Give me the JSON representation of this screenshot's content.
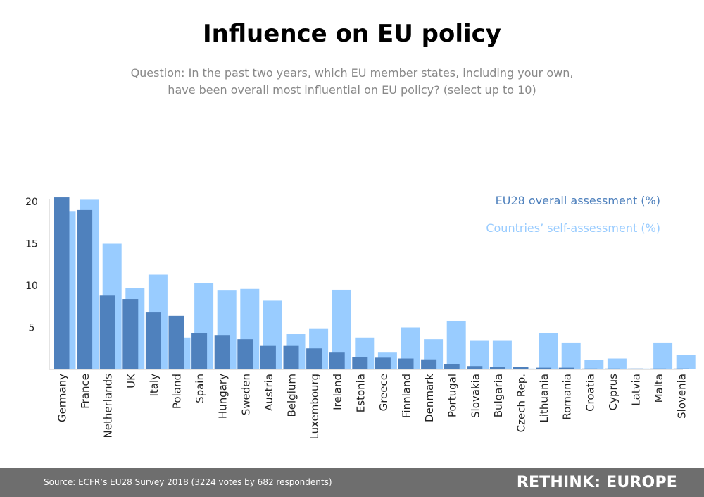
{
  "title": "Influence on EU policy",
  "subtitle": {
    "line1": "Question: In the past two years, which EU member states, including your own,",
    "line2": "have been overall most influential on EU policy? (select up to 10)"
  },
  "colors": {
    "overall": "#4f81bd",
    "self": "#99ccff",
    "footer_bg": "#6e6e6e"
  },
  "chart_data": {
    "type": "bar",
    "categories": [
      "Germany",
      "France",
      "Netherlands",
      "UK",
      "Italy",
      "Poland",
      "Spain",
      "Hungary",
      "Sweden",
      "Austria",
      "Belgium",
      "Luxembourg",
      "Ireland",
      "Estonia",
      "Greece",
      "Finnland",
      "Denmark",
      "Portugal",
      "Slovakia",
      "Bulgaria",
      "Czech Rep.",
      "Lithuania",
      "Romania",
      "Croatia",
      "Cyprus",
      "Latvia",
      "Malta",
      "Slovenia"
    ],
    "series": [
      {
        "name": "EU28 overall assessment (%)",
        "color": "#4f81bd",
        "values": [
          20.5,
          19.0,
          8.8,
          8.4,
          6.8,
          6.4,
          4.3,
          4.1,
          3.6,
          2.8,
          2.8,
          2.5,
          2.0,
          1.5,
          1.4,
          1.3,
          1.2,
          0.6,
          0.4,
          0.3,
          0.3,
          0.2,
          0.2,
          0.1,
          0.1,
          0.1,
          0.1,
          0.1
        ]
      },
      {
        "name": "Countries’ self-assessment (%)",
        "color": "#99ccff",
        "values": [
          18.8,
          20.3,
          15.0,
          9.7,
          11.3,
          3.8,
          10.3,
          9.4,
          9.6,
          8.2,
          4.2,
          4.9,
          9.5,
          3.8,
          2.0,
          5.0,
          3.6,
          5.8,
          3.4,
          3.4,
          0.1,
          4.3,
          3.2,
          1.1,
          1.3,
          0.1,
          3.2,
          1.7
        ]
      }
    ],
    "yticks": [
      5,
      10,
      15,
      20
    ],
    "ylim": [
      0,
      21.5
    ],
    "grid": false,
    "legend_position": "top-right",
    "xlabel": "",
    "ylabel": ""
  },
  "footer": {
    "source": "Source: ECFR’s EU28 Survey 2018 (3224 votes by 682 respondents)",
    "brand": "RETHINK: EUROPE"
  }
}
